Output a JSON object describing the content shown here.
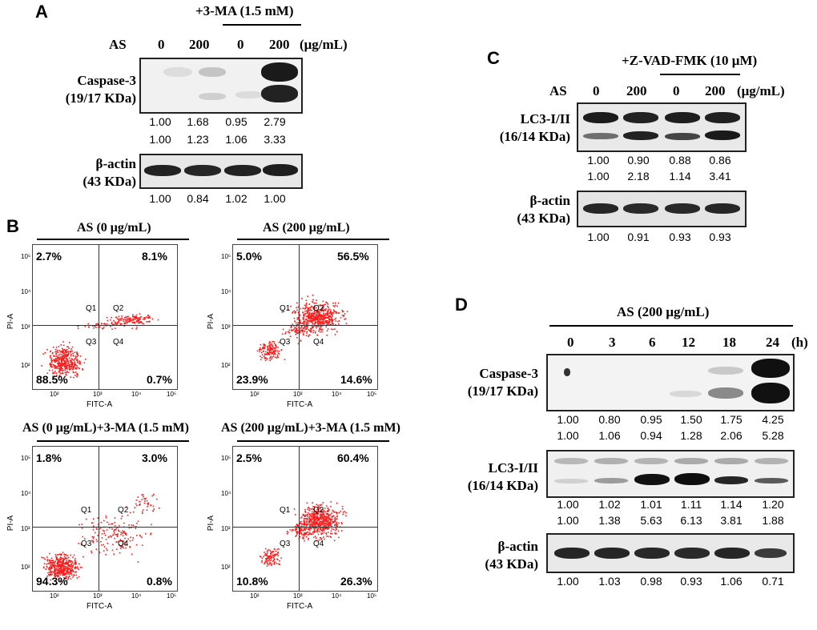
{
  "panel_a": {
    "label": "A",
    "treatment_header": "+3-MA (1.5 mM)",
    "as_label": "AS",
    "doses": [
      "0",
      "200",
      "0",
      "200"
    ],
    "unit": "(μg/mL)",
    "caspase_label_1": "Caspase-3",
    "caspase_label_2": "(19/17 KDa)",
    "caspase_row1": [
      "1.00",
      "1.68",
      "0.95",
      "2.79"
    ],
    "caspase_row2": [
      "1.00",
      "1.23",
      "1.06",
      "3.33"
    ],
    "actin_label_1": "β-actin",
    "actin_label_2": "(43 KDa)",
    "actin_row": [
      "1.00",
      "0.84",
      "1.02",
      "1.00"
    ]
  },
  "panel_b": {
    "label": "B",
    "x_axis": "FITC-A",
    "y_axis": "PI-A",
    "quadrants": [
      "Q1",
      "Q2",
      "Q3",
      "Q4"
    ],
    "ticks": [
      "10²",
      "10³",
      "10⁴",
      "10⁵"
    ],
    "plots": [
      {
        "title": "AS (0 μg/mL)",
        "q1": "2.7%",
        "q2": "8.1%",
        "q3": "88.5%",
        "q4": "0.7%"
      },
      {
        "title": "AS (200 μg/mL)",
        "q1": "5.0%",
        "q2": "56.5%",
        "q3": "23.9%",
        "q4": "14.6%"
      },
      {
        "title": "AS (0 μg/mL)+3-MA (1.5 mM)",
        "q1": "1.8%",
        "q2": "3.0%",
        "q3": "94.3%",
        "q4": "0.8%"
      },
      {
        "title": "AS (200 μg/mL)+3-MA (1.5 mM)",
        "q1": "2.5%",
        "q2": "60.4%",
        "q3": "10.8%",
        "q4": "26.3%"
      }
    ]
  },
  "panel_c": {
    "label": "C",
    "treatment_header": "+Z-VAD-FMK (10 μM)",
    "as_label": "AS",
    "doses": [
      "0",
      "200",
      "0",
      "200"
    ],
    "unit": "(μg/mL)",
    "lc3_label_1": "LC3-I/II",
    "lc3_label_2": "(16/14 KDa)",
    "lc3_row1": [
      "1.00",
      "0.90",
      "0.88",
      "0.86"
    ],
    "lc3_row2": [
      "1.00",
      "2.18",
      "1.14",
      "3.41"
    ],
    "actin_label_1": "β-actin",
    "actin_label_2": "(43 KDa)",
    "actin_row": [
      "1.00",
      "0.91",
      "0.93",
      "0.93"
    ]
  },
  "panel_d": {
    "label": "D",
    "header": "AS (200 μg/mL)",
    "times": [
      "0",
      "3",
      "6",
      "12",
      "18",
      "24"
    ],
    "time_unit": "(h)",
    "caspase_label_1": "Caspase-3",
    "caspase_label_2": "(19/17 KDa)",
    "caspase_row1": [
      "1.00",
      "0.80",
      "0.95",
      "1.50",
      "1.75",
      "4.25"
    ],
    "caspase_row2": [
      "1.00",
      "1.06",
      "0.94",
      "1.28",
      "2.06",
      "5.28"
    ],
    "lc3_label_1": "LC3-I/II",
    "lc3_label_2": "(16/14 KDa)",
    "lc3_row1": [
      "1.00",
      "1.02",
      "1.01",
      "1.11",
      "1.14",
      "1.20"
    ],
    "lc3_row2": [
      "1.00",
      "1.38",
      "5.63",
      "6.13",
      "3.81",
      "1.88"
    ],
    "actin_label_1": "β-actin",
    "actin_label_2": "(43 KDa)",
    "actin_row": [
      "1.00",
      "1.03",
      "0.98",
      "0.93",
      "1.06",
      "0.71"
    ]
  }
}
